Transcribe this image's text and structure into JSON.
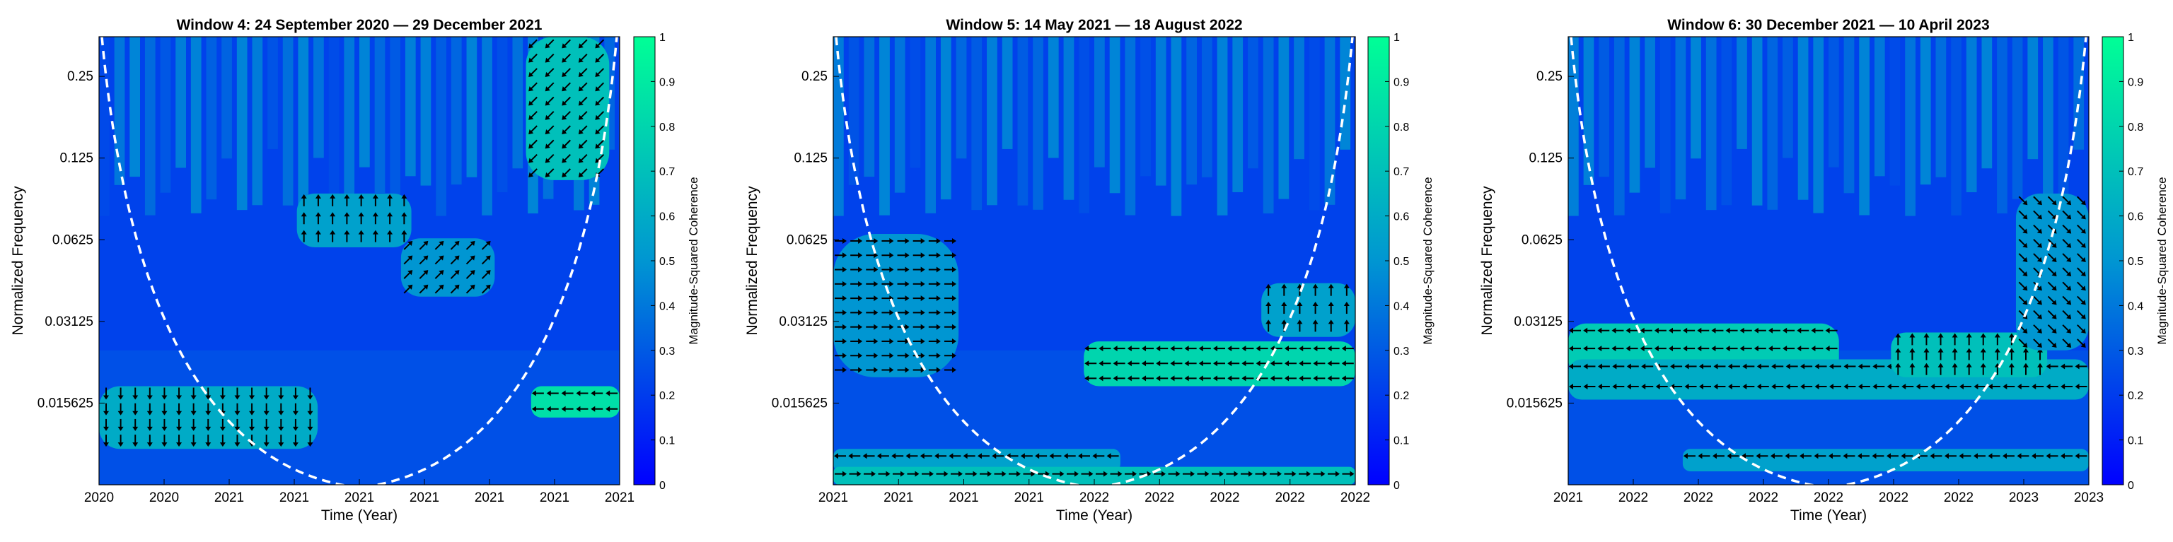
{
  "figure": {
    "colorbar_ticks": [
      "0",
      "0.1",
      "0.2",
      "0.3",
      "0.4",
      "0.5",
      "0.6",
      "0.7",
      "0.8",
      "0.9",
      "1"
    ],
    "colors": {
      "low": "#0000ff",
      "mid": "#0096d2",
      "high": "#00ff96",
      "cone": "#ffffff",
      "arrow": "#000000"
    }
  },
  "chart_data": [
    {
      "type": "heatmap",
      "subtype": "wavelet-coherence",
      "title": "Window 4: 24 September 2020 — 29 December 2021",
      "xlabel": "Time (Year)",
      "ylabel": "Normalized Frequency",
      "colorbar_label": "Magnitude-Squared Coherence",
      "clim": [
        0,
        1
      ],
      "yscale": "log2",
      "yticks": [
        0.015625,
        0.03125,
        0.0625,
        0.125,
        0.25
      ],
      "ytick_labels": [
        "0.015625",
        "0.03125",
        "0.0625",
        "0.125",
        "0.25"
      ],
      "xtick_labels": [
        "2020",
        "2020",
        "2021",
        "2021",
        "2021",
        "2021",
        "2021",
        "2021",
        "2021"
      ],
      "cone_of_influence": true,
      "high_coherence_regions": [
        {
          "period": "early window",
          "frequency": "0.012–0.02",
          "coherence": 0.6,
          "phase": "down"
        },
        {
          "period": "mid 2021",
          "frequency": "0.07–0.1",
          "coherence": 0.55,
          "phase": "up"
        },
        {
          "period": "late 2021",
          "frequency": "0.04–0.06",
          "coherence": 0.5,
          "phase": "up-right"
        },
        {
          "period": "end of window",
          "frequency": "0.014–0.02",
          "coherence": 0.85,
          "phase": "left"
        },
        {
          "period": "end of window",
          "frequency": "0.15–0.32",
          "coherence": 0.7,
          "phase": "down-left"
        }
      ]
    },
    {
      "type": "heatmap",
      "subtype": "wavelet-coherence",
      "title": "Window 5: 14 May 2021 — 18 August 2022",
      "xlabel": "Time (Year)",
      "ylabel": "Normalized Frequency",
      "colorbar_label": "Magnitude-Squared Coherence",
      "clim": [
        0,
        1
      ],
      "yscale": "log2",
      "yticks": [
        0.015625,
        0.03125,
        0.0625,
        0.125,
        0.25
      ],
      "ytick_labels": [
        "0.015625",
        "0.03125",
        "0.0625",
        "0.125",
        "0.25"
      ],
      "xtick_labels": [
        "2021",
        "2021",
        "2021",
        "2021",
        "2022",
        "2022",
        "2022",
        "2022",
        "2022"
      ],
      "cone_of_influence": true,
      "high_coherence_regions": [
        {
          "period": "start of window",
          "frequency": "0.03–0.07",
          "coherence": 0.5,
          "phase": "right"
        },
        {
          "period": "early window",
          "frequency": "0.01",
          "coherence": 0.55,
          "phase": "left"
        },
        {
          "period": "whole window",
          "frequency": "0.0085",
          "coherence": 0.7,
          "phase": "right"
        },
        {
          "period": "late 2022",
          "frequency": "0.02–0.03",
          "coherence": 0.8,
          "phase": "left"
        },
        {
          "period": "late 2022",
          "frequency": "0.035–0.05",
          "coherence": 0.55,
          "phase": "up"
        }
      ]
    },
    {
      "type": "heatmap",
      "subtype": "wavelet-coherence",
      "title": "Window 6: 30 December 2021 — 10 April 2023",
      "xlabel": "Time (Year)",
      "ylabel": "Normalized Frequency",
      "colorbar_label": "Magnitude-Squared Coherence",
      "clim": [
        0,
        1
      ],
      "yscale": "log2",
      "yticks": [
        0.015625,
        0.03125,
        0.0625,
        0.125,
        0.25
      ],
      "ytick_labels": [
        "0.015625",
        "0.03125",
        "0.0625",
        "0.125",
        "0.25"
      ],
      "xtick_labels": [
        "2021",
        "2022",
        "2022",
        "2022",
        "2022",
        "2022",
        "2022",
        "2023",
        "2023"
      ],
      "cone_of_influence": true,
      "high_coherence_regions": [
        {
          "period": "start of window",
          "frequency": "0.02–0.035",
          "coherence": 0.75,
          "phase": "left"
        },
        {
          "period": "whole window",
          "frequency": "0.016–0.025",
          "coherence": 0.6,
          "phase": "left"
        },
        {
          "period": "late 2022",
          "frequency": "0.022–0.03",
          "coherence": 0.7,
          "phase": "up"
        },
        {
          "period": "late window",
          "frequency": "0.01",
          "coherence": 0.55,
          "phase": "left"
        },
        {
          "period": "end of window",
          "frequency": "0.04–0.08",
          "coherence": 0.5,
          "phase": "down-right"
        }
      ]
    }
  ]
}
